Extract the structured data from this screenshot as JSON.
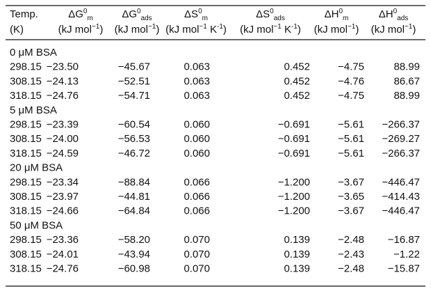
{
  "table": {
    "columns": [
      {
        "symbol": "Temp.",
        "unit": "(K)"
      },
      {
        "symbol": "ΔG",
        "sup": "0",
        "sub": "m",
        "unit": "(kJ mol",
        "unit_sup": "−1",
        "unit_end": ")"
      },
      {
        "symbol": "ΔG",
        "sup": "0",
        "sub": "ads",
        "unit": "(kJ mol",
        "unit_sup": "−1",
        "unit_end": ")"
      },
      {
        "symbol": "ΔS",
        "sup": "0",
        "sub": "m",
        "unit": "(kJ mol",
        "unit_sup": "−1",
        "unit_mid": " K",
        "unit_sup2": "-1",
        "unit_end": ")"
      },
      {
        "symbol": "ΔS",
        "sup": "0",
        "sub": "ads",
        "unit": "(kJ mol",
        "unit_sup": "−1",
        "unit_mid": " K",
        "unit_sup2": "-1",
        "unit_end": ")"
      },
      {
        "symbol": "ΔH",
        "sup": "0",
        "sub": "m",
        "unit": "(kJ mol",
        "unit_sup": "−1",
        "unit_end": ")"
      },
      {
        "symbol": "ΔH",
        "sup": "0",
        "sub": "ads",
        "unit": "(kJ mol",
        "unit_sup": "−1",
        "unit_end": ")"
      }
    ],
    "groups": [
      {
        "label": "0 μM BSA",
        "rows": [
          [
            "298.15",
            "−23.50",
            "−45.67",
            "0.063",
            "0.452",
            "−4.75",
            "88.99"
          ],
          [
            "308.15",
            "−24.13",
            "−52.51",
            "0.063",
            "0.452",
            "−4.76",
            "86.67"
          ],
          [
            "318.15",
            "−24.76",
            "−54.71",
            "0.063",
            "0.452",
            "−4.75",
            "88.99"
          ]
        ]
      },
      {
        "label": "5 μM BSA",
        "rows": [
          [
            "298.15",
            "−23.39",
            "−60.54",
            "0.060",
            "−0.691",
            "−5.61",
            "−266.37"
          ],
          [
            "308.15",
            "−24.00",
            "−56.53",
            "0.060",
            "−0.691",
            "−5.61",
            "−269.27"
          ],
          [
            "318.15",
            "−24.59",
            "−46.72",
            "0.060",
            "−0.691",
            "−5.61",
            "−266.37"
          ]
        ]
      },
      {
        "label": "20 μM BSA",
        "rows": [
          [
            "298.15",
            "−23.34",
            "−88.84",
            "0.066",
            "−1.200",
            "−3.67",
            "−446.47"
          ],
          [
            "308.15",
            "−23.97",
            "−44.81",
            "0.066",
            "−1.200",
            "−3.65",
            "−414.43"
          ],
          [
            "318.15",
            "−24.66",
            "−64.84",
            "0.066",
            "−1.200",
            "−3.67",
            "−446.47"
          ]
        ]
      },
      {
        "label": "50 μM BSA",
        "rows": [
          [
            "298.15",
            "−23.36",
            "−58.20",
            "0.070",
            "0.139",
            "−2.48",
            "−16.87"
          ],
          [
            "308.15",
            "−24.01",
            "−43.94",
            "0.070",
            "0.139",
            "−2.43",
            "−1.22"
          ],
          [
            "318.15",
            "−24.76",
            "−60.98",
            "0.070",
            "0.139",
            "−2.48",
            "−15.87"
          ]
        ]
      }
    ]
  }
}
